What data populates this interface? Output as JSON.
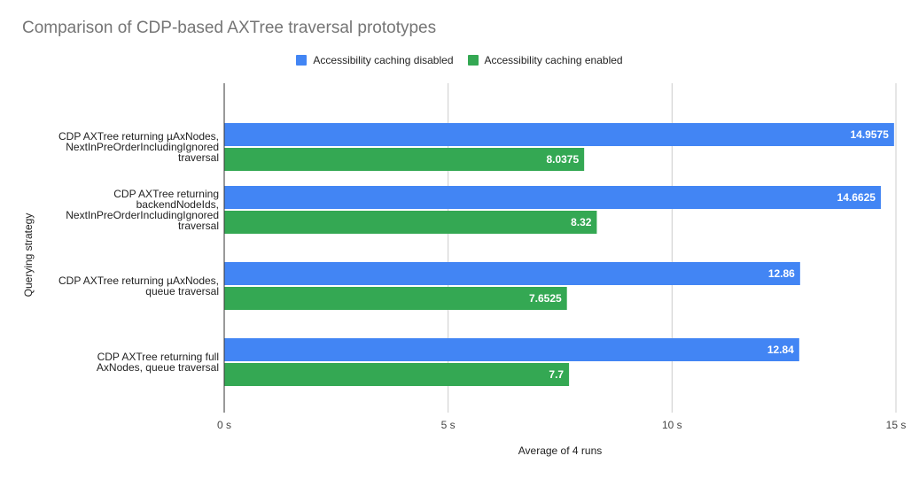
{
  "chart_data": {
    "type": "bar",
    "orientation": "horizontal",
    "title": "Comparison of CDP-based AXTree traversal prototypes",
    "xlabel": "Average of 4 runs",
    "ylabel": "Querying strategy",
    "xlim": [
      0,
      15
    ],
    "x_ticks": [
      0,
      5,
      10,
      15
    ],
    "x_tick_labels": [
      "0 s",
      "5 s",
      "10 s",
      "15 s"
    ],
    "grid": true,
    "legend_position": "top-center",
    "categories": [
      [
        "CDP AXTree returning µAxNodes,",
        "NextInPreOrderIncludingIgnored",
        "traversal"
      ],
      [
        "CDP AXTree returning",
        "backendNodeIds,",
        "NextInPreOrderIncludingIgnored",
        "traversal"
      ],
      [
        "CDP AXTree returning µAxNodes,",
        "queue traversal"
      ],
      [
        "CDP AXTree returning full",
        "AxNodes, queue traversal"
      ]
    ],
    "series": [
      {
        "name": "Accessibility caching disabled",
        "color": "#4285f4",
        "values": [
          14.9575,
          14.6625,
          12.86,
          12.84
        ],
        "value_labels": [
          "14.9575",
          "14.6625",
          "12.86",
          "12.84"
        ]
      },
      {
        "name": "Accessibility caching enabled",
        "color": "#34a853",
        "values": [
          8.0375,
          8.32,
          7.6525,
          7.7
        ],
        "value_labels": [
          "8.0375",
          "8.32",
          "7.6525",
          "7.7"
        ]
      }
    ]
  }
}
